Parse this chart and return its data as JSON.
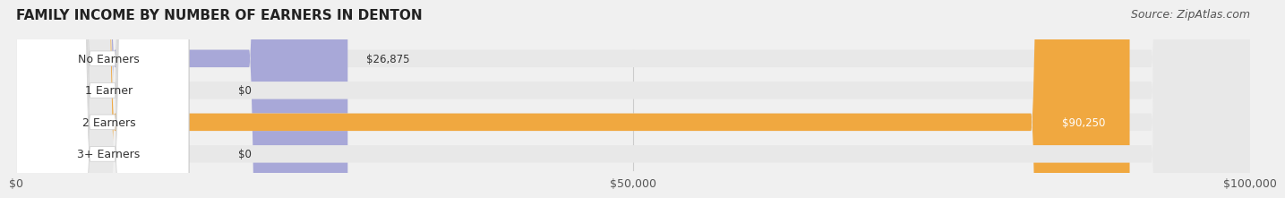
{
  "title": "FAMILY INCOME BY NUMBER OF EARNERS IN DENTON",
  "source": "Source: ZipAtlas.com",
  "categories": [
    "No Earners",
    "1 Earner",
    "2 Earners",
    "3+ Earners"
  ],
  "values": [
    26875,
    0,
    90250,
    0
  ],
  "bar_colors": [
    "#a8a8d8",
    "#f0a0a8",
    "#f0a840",
    "#f0a0a8"
  ],
  "label_bg_colors": [
    "#c8c8e8",
    "#f8c0c8",
    "#f0a840",
    "#f8c0c8"
  ],
  "bar_labels": [
    "$26,875",
    "$0",
    "$90,250",
    "$0"
  ],
  "xlim": [
    0,
    100000
  ],
  "xticks": [
    0,
    50000,
    100000
  ],
  "xtick_labels": [
    "$0",
    "$50,000",
    "$100,000"
  ],
  "bg_color": "#f0f0f0",
  "bar_bg_color": "#e8e8e8",
  "bar_height": 0.55,
  "title_fontsize": 11,
  "source_fontsize": 9,
  "label_fontsize": 9,
  "value_fontsize": 8.5
}
